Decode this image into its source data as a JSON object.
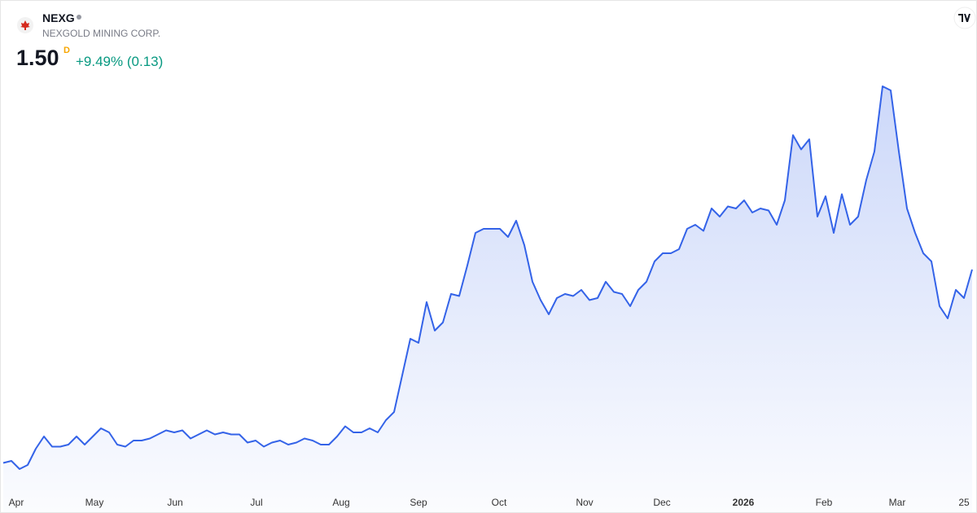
{
  "header": {
    "symbol": "NEXG",
    "company": "NEXGOLD MINING CORP.",
    "price": "1.50",
    "interval": "D",
    "change": "+9.49% (0.13)"
  },
  "chart_data": {
    "type": "area",
    "color": "#3463e8",
    "values": [
      0.55,
      0.56,
      0.52,
      0.54,
      0.62,
      0.68,
      0.63,
      0.63,
      0.64,
      0.68,
      0.64,
      0.68,
      0.72,
      0.7,
      0.64,
      0.63,
      0.66,
      0.66,
      0.67,
      0.69,
      0.71,
      0.7,
      0.71,
      0.67,
      0.69,
      0.71,
      0.69,
      0.7,
      0.69,
      0.69,
      0.65,
      0.66,
      0.63,
      0.65,
      0.66,
      0.64,
      0.65,
      0.67,
      0.66,
      0.64,
      0.64,
      0.68,
      0.73,
      0.7,
      0.7,
      0.72,
      0.7,
      0.76,
      0.8,
      0.98,
      1.16,
      1.14,
      1.34,
      1.2,
      1.24,
      1.38,
      1.37,
      1.52,
      1.68,
      1.7,
      1.7,
      1.7,
      1.66,
      1.74,
      1.62,
      1.44,
      1.35,
      1.28,
      1.36,
      1.38,
      1.37,
      1.4,
      1.35,
      1.36,
      1.44,
      1.39,
      1.38,
      1.32,
      1.4,
      1.44,
      1.54,
      1.58,
      1.58,
      1.6,
      1.7,
      1.72,
      1.69,
      1.8,
      1.76,
      1.81,
      1.8,
      1.84,
      1.78,
      1.8,
      1.79,
      1.72,
      1.84,
      2.16,
      2.09,
      2.14,
      1.76,
      1.86,
      1.68,
      1.87,
      1.72,
      1.76,
      1.94,
      2.08,
      2.4,
      2.38,
      2.08,
      1.8,
      1.68,
      1.58,
      1.54,
      1.32,
      1.26,
      1.4,
      1.36,
      1.5
    ],
    "xlim": [
      0,
      119
    ],
    "ylim": [
      0.42,
      2.46
    ],
    "xticks": [
      {
        "value": 0.8,
        "label": "Apr"
      },
      {
        "value": 10.4,
        "label": "May"
      },
      {
        "value": 20.3,
        "label": "Jun"
      },
      {
        "value": 30.3,
        "label": "Jul"
      },
      {
        "value": 40.7,
        "label": "Aug"
      },
      {
        "value": 50.2,
        "label": "Sep"
      },
      {
        "value": 60.1,
        "label": "Oct"
      },
      {
        "value": 70.6,
        "label": "Nov"
      },
      {
        "value": 80.1,
        "label": "Dec"
      },
      {
        "value": 90.1,
        "label": "2026"
      },
      {
        "value": 100.0,
        "label": "Feb"
      },
      {
        "value": 109.0,
        "label": "Mar"
      },
      {
        "value": 117.2,
        "label": "25"
      }
    ]
  }
}
